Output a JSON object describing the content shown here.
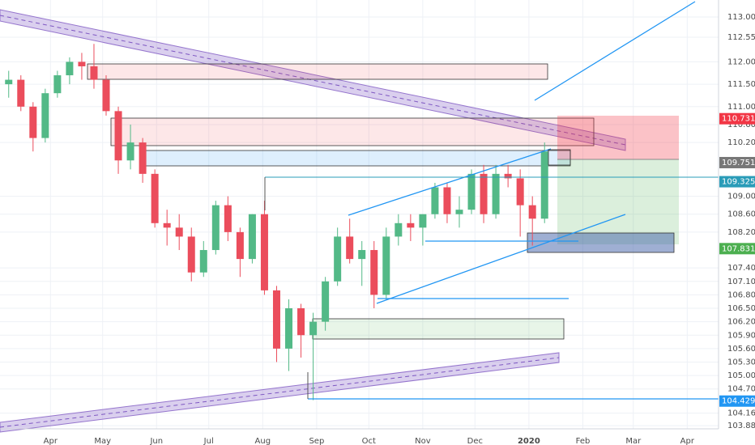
{
  "chart_data": {
    "type": "candlestick",
    "x": [
      -24,
      -17,
      -10,
      -3,
      4,
      11,
      18,
      25,
      32,
      39,
      46,
      53,
      60,
      67,
      74,
      81,
      88,
      95,
      102,
      109,
      116,
      123,
      130,
      137,
      144,
      151,
      158,
      165,
      172,
      179,
      186,
      193,
      200,
      207,
      214,
      221,
      228,
      235,
      242,
      249,
      256,
      263,
      270,
      277,
      284
    ],
    "open": [
      111.5,
      111.6,
      111.0,
      110.3,
      111.3,
      111.7,
      112.0,
      111.9,
      111.6,
      110.9,
      109.8,
      110.2,
      109.5,
      108.4,
      108.3,
      108.1,
      107.3,
      107.8,
      108.8,
      108.2,
      107.6,
      108.6,
      106.9,
      105.6,
      106.5,
      105.9,
      106.2,
      107.1,
      108.1,
      107.6,
      107.8,
      106.8,
      108.1,
      108.4,
      108.3,
      108.6,
      109.2,
      108.6,
      108.7,
      109.5,
      108.6,
      109.5,
      109.4,
      108.8,
      108.5
    ],
    "high": [
      111.8,
      111.7,
      111.1,
      111.4,
      111.8,
      112.1,
      112.2,
      112.4,
      111.7,
      111.0,
      110.6,
      110.3,
      109.6,
      108.7,
      108.6,
      108.3,
      108.0,
      108.9,
      109.0,
      108.3,
      108.6,
      108.9,
      107.0,
      106.7,
      106.6,
      106.4,
      107.2,
      108.3,
      108.5,
      108.0,
      108.0,
      108.3,
      108.6,
      108.6,
      108.6,
      109.3,
      109.3,
      109.0,
      109.6,
      109.7,
      109.7,
      109.7,
      109.6,
      109.0,
      110.2
    ],
    "low": [
      111.2,
      110.9,
      110.0,
      110.2,
      111.2,
      111.5,
      111.6,
      111.4,
      110.8,
      109.5,
      109.6,
      109.3,
      108.3,
      107.9,
      107.8,
      107.1,
      107.2,
      107.7,
      108.0,
      107.2,
      107.5,
      106.8,
      105.3,
      105.1,
      105.4,
      104.45,
      106.0,
      107.0,
      107.5,
      107.0,
      106.5,
      106.7,
      107.9,
      108.0,
      107.9,
      108.5,
      108.4,
      108.3,
      108.6,
      108.4,
      108.5,
      109.2,
      108.1,
      107.9,
      108.4
    ],
    "close": [
      111.6,
      111.0,
      110.3,
      111.3,
      111.7,
      112.0,
      111.9,
      111.6,
      110.9,
      109.8,
      110.2,
      109.5,
      108.4,
      108.3,
      108.1,
      107.3,
      107.8,
      108.8,
      108.2,
      107.6,
      108.6,
      106.9,
      105.6,
      106.5,
      105.9,
      106.2,
      107.1,
      108.1,
      107.6,
      107.8,
      106.8,
      108.1,
      108.4,
      108.3,
      108.6,
      109.2,
      108.6,
      108.7,
      109.5,
      108.6,
      109.5,
      109.4,
      108.8,
      108.5,
      110.0
    ],
    "up_color": "#53b987",
    "down_color": "#eb4d5c",
    "xlim": [
      -29,
      384
    ],
    "xticks": [
      {
        "value": 0,
        "label": "Apr"
      },
      {
        "value": 30,
        "label": "May"
      },
      {
        "value": 61,
        "label": "Jun"
      },
      {
        "value": 91,
        "label": "Jul"
      },
      {
        "value": 122,
        "label": "Aug"
      },
      {
        "value": 153,
        "label": "Sep"
      },
      {
        "value": 183,
        "label": "Oct"
      },
      {
        "value": 214,
        "label": "Nov"
      },
      {
        "value": 244,
        "label": "Dec"
      },
      {
        "value": 275,
        "label": "2020"
      },
      {
        "value": 306,
        "label": "Feb"
      },
      {
        "value": 335,
        "label": "Mar"
      },
      {
        "value": 366,
        "label": "Apr"
      }
    ],
    "ylim": [
      103.81,
      113.38
    ],
    "yticks": [
      {
        "value": 113,
        "label": "113.000"
      },
      {
        "value": 112.55,
        "label": "112.550"
      },
      {
        "value": 112,
        "label": "112.000"
      },
      {
        "value": 111.5,
        "label": "111.500"
      },
      {
        "value": 111,
        "label": "111.000"
      },
      {
        "value": 110.6,
        "label": "110.600"
      },
      {
        "value": 110.2,
        "label": "110.200"
      },
      {
        "value": 109,
        "label": "109.000"
      },
      {
        "value": 108.6,
        "label": "108.600"
      },
      {
        "value": 108.2,
        "label": "108.200"
      },
      {
        "value": 107.4,
        "label": "107.400"
      },
      {
        "value": 107.1,
        "label": "107.100"
      },
      {
        "value": 106.8,
        "label": "106.800"
      },
      {
        "value": 106.5,
        "label": "106.500"
      },
      {
        "value": 106.2,
        "label": "106.200"
      },
      {
        "value": 105.9,
        "label": "105.900"
      },
      {
        "value": 105.6,
        "label": "105.600"
      },
      {
        "value": 105.3,
        "label": "105.300"
      },
      {
        "value": 105,
        "label": "105.000"
      },
      {
        "value": 104.7,
        "label": "104.700"
      },
      {
        "value": 104.16,
        "label": "104.160"
      },
      {
        "value": 103.88,
        "label": "103.880"
      }
    ],
    "grid": true,
    "price_labels": [
      {
        "value": 110.731,
        "label": "110.731",
        "color": "#f23645"
      },
      {
        "value": 109.751,
        "label": "109.751",
        "color": "#777777"
      },
      {
        "value": 109.325,
        "label": "109.325",
        "color": "#2a9cb8"
      },
      {
        "value": 107.831,
        "label": "107.831",
        "color": "#4caf50"
      },
      {
        "value": 104.429,
        "label": "104.429",
        "color": "#2196f3"
      }
    ]
  }
}
